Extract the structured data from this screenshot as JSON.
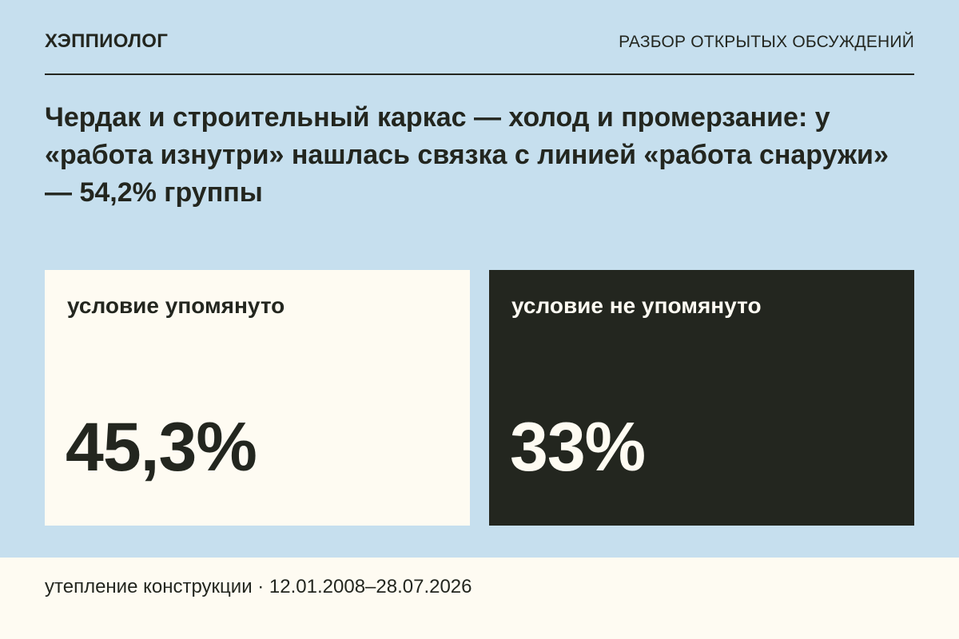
{
  "header": {
    "brand": "ХЭППИОЛОГ",
    "section": "РАЗБОР ОТКРЫТЫХ ОБСУЖДЕНИЙ"
  },
  "headline": "Чердак и строительный каркас — холод и промерзание: у «работа изнутри» нашлась связка с линией «работа снаружи» — 54,2% группы",
  "cards": [
    {
      "label": "условие упомянуто",
      "value": "45,3%"
    },
    {
      "label": "условие не упомянуто",
      "value": "33%"
    }
  ],
  "footer": {
    "text": "утепление конструкции · 12.01.2008–28.07.2026"
  },
  "colors": {
    "background": "#c6dfee",
    "light_card": "#fefbf2",
    "dark_card": "#23261f"
  }
}
